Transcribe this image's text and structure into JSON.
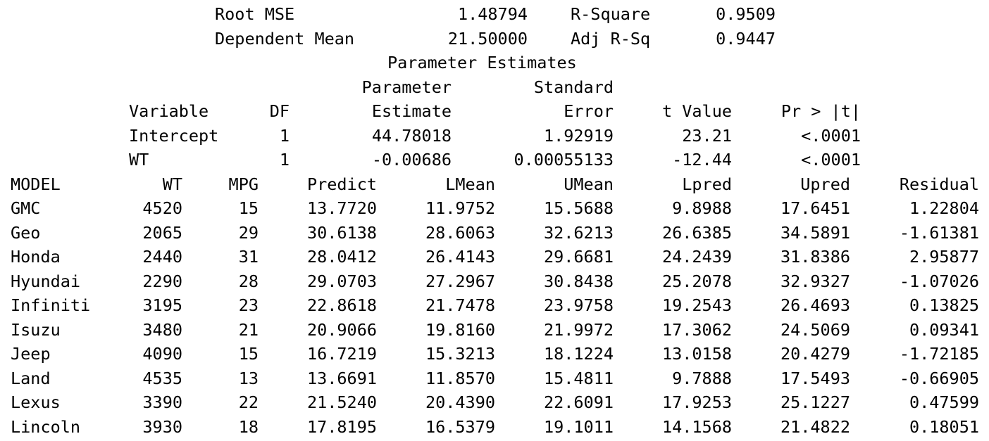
{
  "fit_statistics": {
    "rows": [
      {
        "label": "Root MSE",
        "value": "1.48794",
        "label2": "R-Square",
        "value2": "0.9509"
      },
      {
        "label": "Dependent Mean",
        "value": "21.50000",
        "label2": "Adj R-Sq",
        "value2": "0.9447"
      }
    ]
  },
  "parameter_estimates": {
    "title": "Parameter Estimates",
    "header_line1": {
      "estimate": "Parameter",
      "stderr": "Standard"
    },
    "header_line2": {
      "variable": "Variable",
      "df": "DF",
      "estimate": "Estimate",
      "stderr": "Error",
      "tvalue": "t Value",
      "pvalue": "Pr > |t|"
    },
    "rows": [
      {
        "variable": "Intercept",
        "df": "1",
        "estimate": "44.78018",
        "stderr": "1.92919",
        "tvalue": "23.21",
        "pvalue": "<.0001"
      },
      {
        "variable": "WT",
        "df": "1",
        "estimate": "-0.00686",
        "stderr": "0.00055133",
        "tvalue": "-12.44",
        "pvalue": "<.0001"
      }
    ]
  },
  "predictions": {
    "headers": {
      "model": "MODEL",
      "wt": "WT",
      "mpg": "MPG",
      "predict": "Predict",
      "lmean": "LMean",
      "umean": "UMean",
      "lpred": "Lpred",
      "upred": "Upred",
      "residual": "Residual"
    },
    "rows": [
      {
        "model": "GMC",
        "wt": "4520",
        "mpg": "15",
        "predict": "13.7720",
        "lmean": "11.9752",
        "umean": "15.5688",
        "lpred": "9.8988",
        "upred": "17.6451",
        "residual": "1.22804"
      },
      {
        "model": "Geo",
        "wt": "2065",
        "mpg": "29",
        "predict": "30.6138",
        "lmean": "28.6063",
        "umean": "32.6213",
        "lpred": "26.6385",
        "upred": "34.5891",
        "residual": "-1.61381"
      },
      {
        "model": "Honda",
        "wt": "2440",
        "mpg": "31",
        "predict": "28.0412",
        "lmean": "26.4143",
        "umean": "29.6681",
        "lpred": "24.2439",
        "upred": "31.8386",
        "residual": "2.95877"
      },
      {
        "model": "Hyundai",
        "wt": "2290",
        "mpg": "28",
        "predict": "29.0703",
        "lmean": "27.2967",
        "umean": "30.8438",
        "lpred": "25.2078",
        "upred": "32.9327",
        "residual": "-1.07026"
      },
      {
        "model": "Infiniti",
        "wt": "3195",
        "mpg": "23",
        "predict": "22.8618",
        "lmean": "21.7478",
        "umean": "23.9758",
        "lpred": "19.2543",
        "upred": "26.4693",
        "residual": "0.13825"
      },
      {
        "model": "Isuzu",
        "wt": "3480",
        "mpg": "21",
        "predict": "20.9066",
        "lmean": "19.8160",
        "umean": "21.9972",
        "lpred": "17.3062",
        "upred": "24.5069",
        "residual": "0.09341"
      },
      {
        "model": "Jeep",
        "wt": "4090",
        "mpg": "15",
        "predict": "16.7219",
        "lmean": "15.3213",
        "umean": "18.1224",
        "lpred": "13.0158",
        "upred": "20.4279",
        "residual": "-1.72185"
      },
      {
        "model": "Land",
        "wt": "4535",
        "mpg": "13",
        "predict": "13.6691",
        "lmean": "11.8570",
        "umean": "15.4811",
        "lpred": "9.7888",
        "upred": "17.5493",
        "residual": "-0.66905"
      },
      {
        "model": "Lexus",
        "wt": "3390",
        "mpg": "22",
        "predict": "21.5240",
        "lmean": "20.4390",
        "umean": "22.6091",
        "lpred": "17.9253",
        "upred": "25.1227",
        "residual": "0.47599"
      },
      {
        "model": "Lincoln",
        "wt": "3930",
        "mpg": "18",
        "predict": "17.8195",
        "lmean": "16.5379",
        "umean": "19.1011",
        "lpred": "14.1568",
        "upred": "21.4822",
        "residual": "0.18051"
      }
    ]
  }
}
